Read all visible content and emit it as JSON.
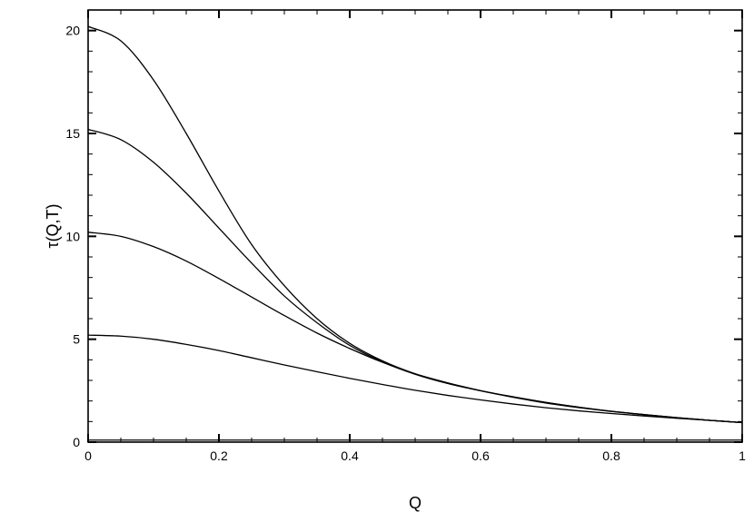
{
  "chart_data": {
    "type": "line",
    "xlabel": "Q",
    "ylabel": "τ(Q,T)",
    "xlim": [
      0,
      1
    ],
    "ylim": [
      0,
      21
    ],
    "x_ticks": [
      {
        "value": 0,
        "label": "0"
      },
      {
        "value": 0.2,
        "label": "0.2"
      },
      {
        "value": 0.4,
        "label": "0.4"
      },
      {
        "value": 0.6,
        "label": "0.6"
      },
      {
        "value": 0.8,
        "label": "0.8"
      },
      {
        "value": 1,
        "label": "1"
      }
    ],
    "y_ticks": [
      {
        "value": 0,
        "label": "0"
      },
      {
        "value": 5,
        "label": "5"
      },
      {
        "value": 10,
        "label": "10"
      },
      {
        "value": 15,
        "label": "15"
      },
      {
        "value": 20,
        "label": "20"
      }
    ],
    "grid": false,
    "legend": "none",
    "line_color": "#000000",
    "series": [
      {
        "x": [
          0,
          0.05,
          0.1,
          0.15,
          0.2,
          0.25,
          0.3,
          0.35,
          0.4,
          0.45,
          0.5,
          0.55,
          0.6,
          0.65,
          0.7,
          0.75,
          0.8,
          0.85,
          0.9,
          0.95,
          1.0
        ],
        "y": [
          5.2,
          5.15,
          5.0,
          4.75,
          4.45,
          4.1,
          3.75,
          3.42,
          3.1,
          2.8,
          2.52,
          2.27,
          2.05,
          1.85,
          1.67,
          1.52,
          1.39,
          1.27,
          1.16,
          1.06,
          0.95
        ]
      },
      {
        "x": [
          0,
          0.05,
          0.1,
          0.15,
          0.2,
          0.25,
          0.3,
          0.35,
          0.4,
          0.45,
          0.5,
          0.55,
          0.6,
          0.65,
          0.7,
          0.75,
          0.8,
          0.85,
          0.9,
          0.95,
          1.0
        ],
        "y": [
          10.2,
          10.0,
          9.5,
          8.8,
          7.95,
          7.05,
          6.15,
          5.3,
          4.55,
          3.88,
          3.32,
          2.88,
          2.5,
          2.18,
          1.9,
          1.68,
          1.49,
          1.33,
          1.18,
          1.06,
          0.95
        ]
      },
      {
        "x": [
          0,
          0.05,
          0.1,
          0.15,
          0.2,
          0.25,
          0.3,
          0.35,
          0.4,
          0.45,
          0.5,
          0.55,
          0.6,
          0.65,
          0.7,
          0.75,
          0.8,
          0.85,
          0.9,
          0.95,
          1.0
        ],
        "y": [
          15.2,
          14.7,
          13.6,
          12.1,
          10.4,
          8.7,
          7.1,
          5.8,
          4.7,
          3.9,
          3.3,
          2.85,
          2.5,
          2.2,
          1.93,
          1.7,
          1.5,
          1.34,
          1.19,
          1.06,
          0.95
        ]
      },
      {
        "x": [
          0,
          0.05,
          0.1,
          0.15,
          0.2,
          0.25,
          0.3,
          0.35,
          0.4,
          0.45,
          0.5,
          0.55,
          0.6,
          0.65,
          0.7,
          0.75,
          0.8,
          0.85,
          0.9,
          0.95,
          1.0
        ],
        "y": [
          20.2,
          19.5,
          17.6,
          15.0,
          12.2,
          9.6,
          7.6,
          6.0,
          4.8,
          3.95,
          3.32,
          2.85,
          2.5,
          2.2,
          1.93,
          1.7,
          1.5,
          1.34,
          1.19,
          1.06,
          0.95
        ]
      },
      {
        "x": [
          0,
          1
        ],
        "y": [
          0.1,
          0.1
        ]
      }
    ]
  }
}
